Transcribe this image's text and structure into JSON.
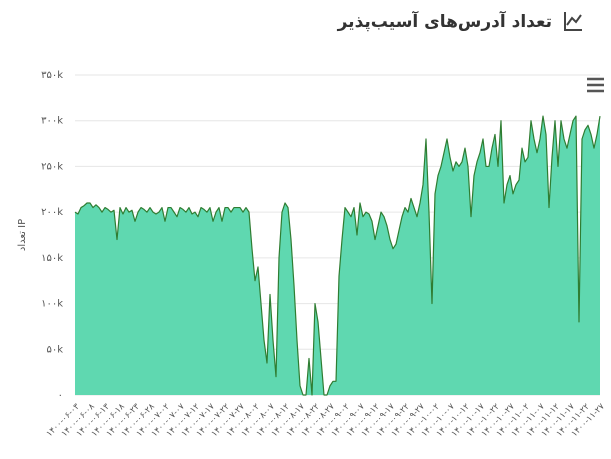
{
  "chart_data": {
    "type": "area",
    "title": "تعداد آدرس‌های آسیب‌پذیر",
    "y_label": "تعداد IP",
    "color": "#5fd8b0",
    "line_color": "#2f7d32",
    "grid": true,
    "ylim": [
      0,
      350000
    ],
    "yticks": [
      {
        "value": 0,
        "label": "۰"
      },
      {
        "value": 50000,
        "label": "۵۰k"
      },
      {
        "value": 100000,
        "label": "۱۰۰k"
      },
      {
        "value": 150000,
        "label": "۱۵۰k"
      },
      {
        "value": 200000,
        "label": "۲۰۰k"
      },
      {
        "value": 250000,
        "label": "۲۵۰k"
      },
      {
        "value": 300000,
        "label": "۳۰۰k"
      },
      {
        "value": 350000,
        "label": "۳۵۰k"
      }
    ],
    "categories": [
      "۱۴۰۰-۰۶-۰۳",
      null,
      null,
      null,
      null,
      "۱۴۰۰-۰۶-۰۸",
      null,
      null,
      null,
      null,
      "۱۴۰۰-۰۶-۱۳",
      null,
      null,
      null,
      null,
      "۱۴۰۰-۰۶-۱۸",
      null,
      null,
      null,
      null,
      "۱۴۰۰-۰۶-۲۳",
      null,
      null,
      null,
      null,
      "۱۴۰۰-۰۶-۲۸",
      null,
      null,
      null,
      null,
      "۱۴۰۰-۰۷-۰۲",
      null,
      null,
      null,
      null,
      "۱۴۰۰-۰۷-۰۷",
      null,
      null,
      null,
      null,
      "۱۴۰۰-۰۷-۱۲",
      null,
      null,
      null,
      null,
      "۱۴۰۰-۰۷-۱۷",
      null,
      null,
      null,
      null,
      "۱۴۰۰-۰۷-۲۲",
      null,
      null,
      null,
      null,
      "۱۴۰۰-۰۷-۲۷",
      null,
      null,
      null,
      null,
      "۱۴۰۰-۰۸-۰۲",
      null,
      null,
      null,
      null,
      "۱۴۰۰-۰۸-۰۷",
      null,
      null,
      null,
      null,
      "۱۴۰۰-۰۸-۱۲",
      null,
      null,
      null,
      null,
      "۱۴۰۰-۰۸-۱۷",
      null,
      null,
      null,
      null,
      "۱۴۰۰-۰۸-۲۲",
      null,
      null,
      null,
      null,
      "۱۴۰۰-۰۸-۲۷",
      null,
      null,
      null,
      null,
      "۱۴۰۰-۰۹-۰۲",
      null,
      null,
      null,
      null,
      "۱۴۰۰-۰۹-۰۷",
      null,
      null,
      null,
      null,
      "۱۴۰۰-۰۹-۱۲",
      null,
      null,
      null,
      null,
      "۱۴۰۰-۰۹-۱۷",
      null,
      null,
      null,
      null,
      "۱۴۰۰-۰۹-۲۲",
      null,
      null,
      null,
      null,
      "۱۴۰۰-۰۹-۲۷",
      null,
      null,
      null,
      null,
      "۱۴۰۰-۱۰-۰۲",
      null,
      null,
      null,
      null,
      "۱۴۰۰-۱۰-۰۷",
      null,
      null,
      null,
      null,
      "۱۴۰۰-۱۰-۱۲",
      null,
      null,
      null,
      null,
      "۱۴۰۰-۱۰-۱۷",
      null,
      null,
      null,
      null,
      "۱۴۰۰-۱۰-۲۲",
      null,
      null,
      null,
      null,
      "۱۴۰۰-۱۰-۲۷",
      null,
      null,
      null,
      null,
      "۱۴۰۰-۱۱-۰۲",
      null,
      null,
      null,
      null,
      "۱۴۰۰-۱۱-۰۷",
      null,
      null,
      null,
      null,
      "۱۴۰۰-۱۱-۱۲",
      null,
      null,
      null,
      null,
      "۱۴۰۰-۱۱-۱۷",
      null,
      null,
      null,
      null,
      "۱۴۰۰-۱۱-۲۲",
      null,
      null,
      null,
      null,
      "۱۴۰۰-۱۱-۲۷"
    ],
    "values": [
      200000,
      198000,
      205000,
      207000,
      210000,
      210000,
      205000,
      208000,
      205000,
      200000,
      205000,
      203000,
      200000,
      202000,
      170000,
      205000,
      198000,
      205000,
      200000,
      202000,
      190000,
      200000,
      205000,
      203000,
      200000,
      205000,
      200000,
      198000,
      200000,
      205000,
      190000,
      205000,
      205000,
      200000,
      195000,
      205000,
      203000,
      200000,
      205000,
      198000,
      200000,
      195000,
      205000,
      203000,
      200000,
      205000,
      190000,
      200000,
      205000,
      190000,
      205000,
      205000,
      200000,
      205000,
      205000,
      205000,
      200000,
      205000,
      200000,
      160000,
      125000,
      140000,
      100000,
      60000,
      35000,
      110000,
      60000,
      20000,
      150000,
      200000,
      210000,
      205000,
      170000,
      120000,
      60000,
      10000,
      0,
      0,
      40000,
      0,
      100000,
      80000,
      40000,
      0,
      0,
      10000,
      15000,
      15000,
      130000,
      170000,
      205000,
      200000,
      195000,
      205000,
      175000,
      210000,
      195000,
      200000,
      198000,
      190000,
      170000,
      185000,
      200000,
      195000,
      185000,
      170000,
      160000,
      165000,
      180000,
      195000,
      205000,
      200000,
      215000,
      205000,
      195000,
      210000,
      230000,
      280000,
      200000,
      100000,
      220000,
      240000,
      250000,
      265000,
      280000,
      260000,
      245000,
      255000,
      250000,
      255000,
      270000,
      250000,
      195000,
      240000,
      255000,
      265000,
      280000,
      250000,
      250000,
      270000,
      285000,
      250000,
      300000,
      210000,
      230000,
      240000,
      220000,
      230000,
      235000,
      270000,
      255000,
      260000,
      300000,
      280000,
      265000,
      280000,
      305000,
      285000,
      205000,
      260000,
      300000,
      250000,
      300000,
      280000,
      270000,
      285000,
      300000,
      305000,
      80000,
      280000,
      290000,
      295000,
      285000,
      270000,
      285000,
      305000
    ]
  }
}
